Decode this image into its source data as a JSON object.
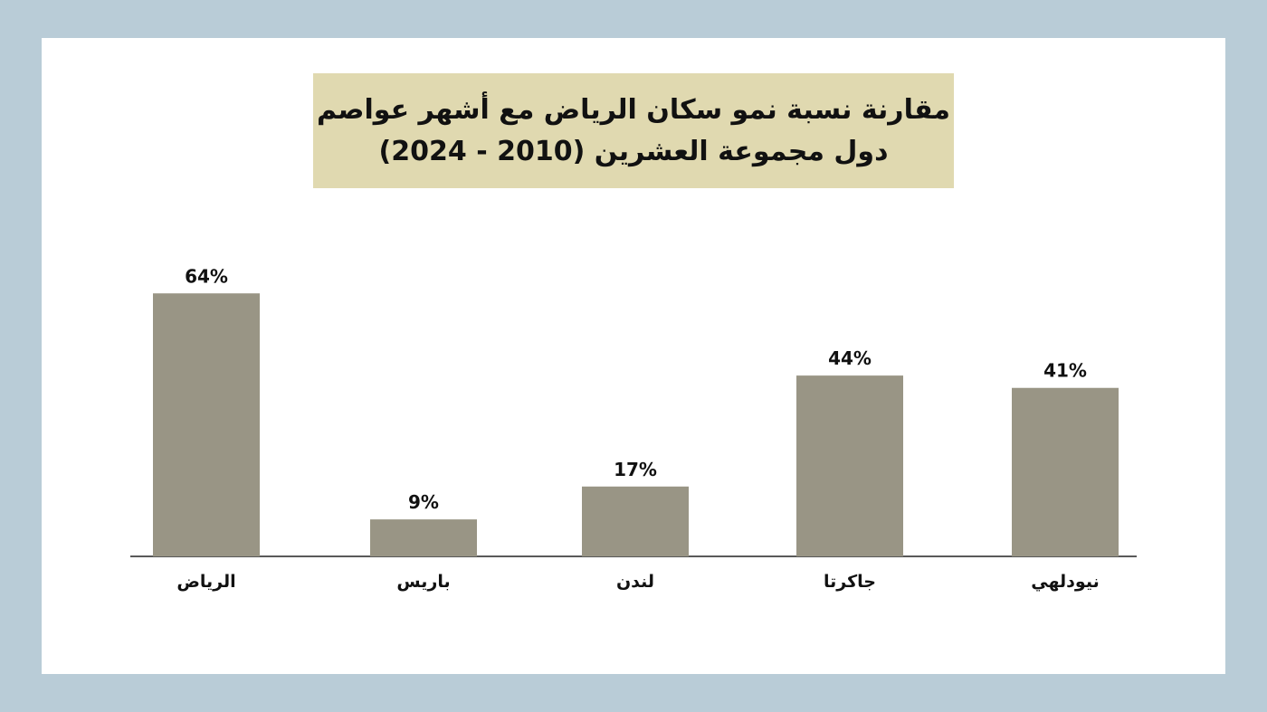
{
  "chart_data": {
    "type": "bar",
    "title_line1": "مقارنة نسبة نمو سكان الرياض مع أشهر عواصم",
    "title_line2": "دول مجموعة العشرين (2010 - 2024)",
    "categories": [
      "الرياض",
      "باريس",
      "لندن",
      "جاكرتا",
      "نيودلهي"
    ],
    "values": [
      64,
      9,
      17,
      44,
      41
    ],
    "data_labels": [
      "64%",
      "9%",
      "17%",
      "44%",
      "41%"
    ],
    "ylim": [
      0,
      70
    ],
    "grid": false,
    "legend": "none",
    "colors": {
      "bar": "#999585",
      "title_background": "#e0d9b0",
      "frame": "#b9ccd7",
      "axis": "#222222"
    }
  }
}
